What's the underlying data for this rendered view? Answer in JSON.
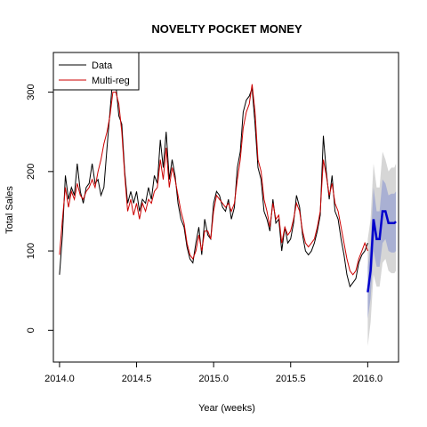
{
  "chart_data": {
    "type": "line",
    "title": "NOVELTY POCKET MONEY",
    "xlabel": "Year (weeks)",
    "ylabel": "Total Sales",
    "xlim": [
      2013.96,
      2016.2
    ],
    "ylim": [
      -40,
      350
    ],
    "xticks": [
      2014.0,
      2014.5,
      2015.0,
      2015.5,
      2016.0
    ],
    "xtick_labels": [
      "2014.0",
      "2014.5",
      "2015.0",
      "2015.5",
      "2016.0"
    ],
    "yticks": [
      0,
      100,
      200,
      300
    ],
    "ytick_labels": [
      "0",
      "100",
      "200",
      "300"
    ],
    "legend_position": "top-left",
    "colors": {
      "data": "#000000",
      "fit": "#cc0000",
      "forecast": "#0000cc",
      "band80": "#a9b0d3",
      "band95": "#d6d6d6"
    },
    "series": [
      {
        "name": "Data",
        "x": [
          2014.0,
          2014.019,
          2014.038,
          2014.058,
          2014.077,
          2014.096,
          2014.115,
          2014.135,
          2014.154,
          2014.173,
          2014.192,
          2014.212,
          2014.231,
          2014.25,
          2014.269,
          2014.288,
          2014.308,
          2014.327,
          2014.346,
          2014.365,
          2014.385,
          2014.404,
          2014.423,
          2014.442,
          2014.462,
          2014.481,
          2014.5,
          2014.519,
          2014.538,
          2014.558,
          2014.577,
          2014.596,
          2014.615,
          2014.635,
          2014.654,
          2014.673,
          2014.692,
          2014.712,
          2014.731,
          2014.75,
          2014.769,
          2014.788,
          2014.808,
          2014.827,
          2014.846,
          2014.865,
          2014.885,
          2014.904,
          2014.923,
          2014.942,
          2014.962,
          2014.981,
          2015.0,
          2015.019,
          2015.038,
          2015.058,
          2015.077,
          2015.096,
          2015.115,
          2015.135,
          2015.154,
          2015.173,
          2015.192,
          2015.212,
          2015.231,
          2015.25,
          2015.269,
          2015.288,
          2015.308,
          2015.327,
          2015.346,
          2015.365,
          2015.385,
          2015.404,
          2015.423,
          2015.442,
          2015.462,
          2015.481,
          2015.5,
          2015.519,
          2015.538,
          2015.558,
          2015.577,
          2015.596,
          2015.615,
          2015.635,
          2015.654,
          2015.673,
          2015.692,
          2015.712,
          2015.731,
          2015.75,
          2015.769,
          2015.788,
          2015.808,
          2015.827,
          2015.846,
          2015.865,
          2015.885,
          2015.904,
          2015.923,
          2015.942,
          2015.962,
          2015.981,
          2016.0
        ],
        "y": [
          70,
          120,
          195,
          165,
          180,
          170,
          210,
          175,
          160,
          180,
          185,
          210,
          185,
          190,
          170,
          180,
          230,
          275,
          320,
          310,
          270,
          260,
          200,
          160,
          175,
          160,
          175,
          150,
          165,
          160,
          180,
          165,
          195,
          185,
          240,
          205,
          250,
          190,
          215,
          195,
          160,
          140,
          130,
          105,
          90,
          85,
          110,
          130,
          95,
          140,
          120,
          115,
          160,
          175,
          170,
          155,
          150,
          165,
          140,
          155,
          205,
          225,
          275,
          290,
          295,
          305,
          260,
          205,
          190,
          150,
          140,
          125,
          165,
          135,
          140,
          100,
          130,
          110,
          115,
          135,
          170,
          155,
          120,
          100,
          95,
          100,
          110,
          125,
          145,
          245,
          200,
          165,
          195,
          150,
          140,
          115,
          95,
          70,
          55,
          60,
          65,
          85,
          95,
          100,
          110
        ]
      },
      {
        "name": "Multi-reg",
        "x": [
          2014.0,
          2014.019,
          2014.038,
          2014.058,
          2014.077,
          2014.096,
          2014.115,
          2014.135,
          2014.154,
          2014.173,
          2014.192,
          2014.212,
          2014.231,
          2014.25,
          2014.269,
          2014.288,
          2014.308,
          2014.327,
          2014.346,
          2014.365,
          2014.385,
          2014.404,
          2014.423,
          2014.442,
          2014.462,
          2014.481,
          2014.5,
          2014.519,
          2014.538,
          2014.558,
          2014.577,
          2014.596,
          2014.615,
          2014.635,
          2014.654,
          2014.673,
          2014.692,
          2014.712,
          2014.731,
          2014.75,
          2014.769,
          2014.788,
          2014.808,
          2014.827,
          2014.846,
          2014.865,
          2014.885,
          2014.904,
          2014.923,
          2014.942,
          2014.962,
          2014.981,
          2015.0,
          2015.019,
          2015.038,
          2015.058,
          2015.077,
          2015.096,
          2015.115,
          2015.135,
          2015.154,
          2015.173,
          2015.192,
          2015.212,
          2015.231,
          2015.25,
          2015.269,
          2015.288,
          2015.308,
          2015.327,
          2015.346,
          2015.365,
          2015.385,
          2015.404,
          2015.423,
          2015.442,
          2015.462,
          2015.481,
          2015.5,
          2015.519,
          2015.538,
          2015.558,
          2015.577,
          2015.596,
          2015.615,
          2015.635,
          2015.654,
          2015.673,
          2015.692,
          2015.712,
          2015.731,
          2015.75,
          2015.769,
          2015.788,
          2015.808,
          2015.827,
          2015.846,
          2015.865,
          2015.885,
          2015.904,
          2015.923,
          2015.942,
          2015.962,
          2015.981,
          2016.0
        ],
        "y": [
          95,
          140,
          180,
          155,
          175,
          165,
          185,
          170,
          165,
          175,
          180,
          190,
          180,
          200,
          215,
          235,
          250,
          270,
          300,
          300,
          285,
          250,
          195,
          150,
          165,
          145,
          160,
          140,
          160,
          150,
          165,
          160,
          175,
          180,
          215,
          190,
          230,
          180,
          205,
          190,
          170,
          150,
          135,
          110,
          95,
          90,
          100,
          120,
          100,
          125,
          125,
          115,
          150,
          170,
          165,
          160,
          155,
          160,
          150,
          160,
          190,
          215,
          255,
          275,
          285,
          310,
          275,
          215,
          200,
          165,
          150,
          130,
          160,
          140,
          145,
          110,
          130,
          120,
          125,
          140,
          160,
          150,
          125,
          110,
          105,
          110,
          115,
          130,
          150,
          215,
          195,
          170,
          185,
          160,
          150,
          130,
          110,
          90,
          75,
          70,
          75,
          90,
          100,
          110,
          100
        ]
      },
      {
        "name": "",
        "x": [
          2016.0,
          2016.019,
          2016.038,
          2016.058,
          2016.077,
          2016.096,
          2016.115,
          2016.135,
          2016.154,
          2016.173,
          2016.183
        ],
        "y": [
          48,
          75,
          140,
          115,
          115,
          150,
          150,
          135,
          135,
          135,
          137
        ],
        "lo80": [
          15,
          40,
          100,
          80,
          80,
          110,
          115,
          100,
          98,
          98,
          100
        ],
        "hi80": [
          80,
          110,
          180,
          150,
          150,
          190,
          185,
          170,
          172,
          172,
          175
        ],
        "lo95": [
          -20,
          10,
          70,
          55,
          55,
          85,
          90,
          75,
          72,
          72,
          75
        ],
        "hi95": [
          115,
          140,
          210,
          180,
          180,
          225,
          215,
          200,
          205,
          205,
          210
        ]
      }
    ]
  }
}
